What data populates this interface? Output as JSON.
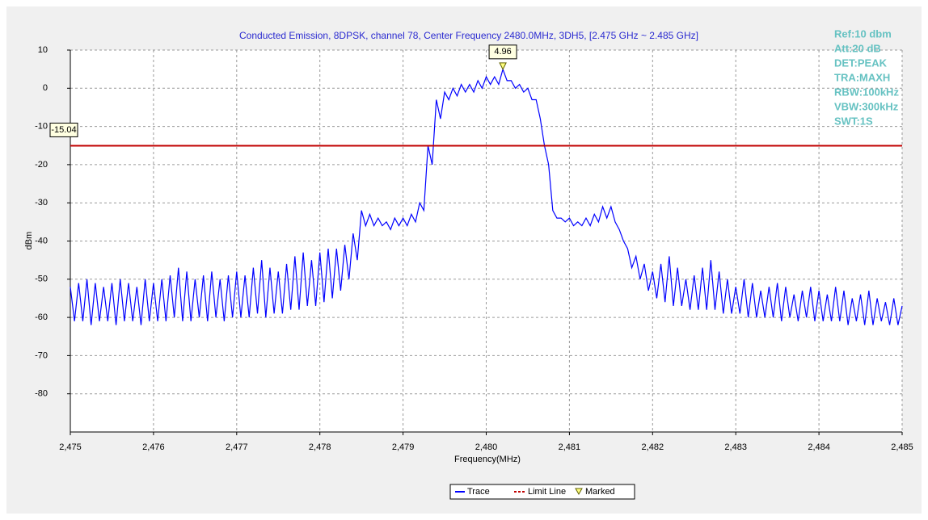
{
  "chart_data": {
    "type": "line",
    "title": "Conducted Emission, 8DPSK, channel 78, Center Frequency 2480.0MHz, 3DH5, [2.475 GHz ~ 2.485 GHz]",
    "xlabel": "Frequency(MHz)",
    "ylabel": "dBm",
    "xlim": [
      2475,
      2485
    ],
    "ylim": [
      -90,
      10
    ],
    "xticks": [
      {
        "value": 2475,
        "label": "2,475"
      },
      {
        "value": 2476,
        "label": "2,476"
      },
      {
        "value": 2477,
        "label": "2,477"
      },
      {
        "value": 2478,
        "label": "2,478"
      },
      {
        "value": 2479,
        "label": "2,479"
      },
      {
        "value": 2480,
        "label": "2,480"
      },
      {
        "value": 2481,
        "label": "2,481"
      },
      {
        "value": 2482,
        "label": "2,482"
      },
      {
        "value": 2483,
        "label": "2,483"
      },
      {
        "value": 2484,
        "label": "2,484"
      },
      {
        "value": 2485,
        "label": "2,485"
      }
    ],
    "yticks": [
      10,
      0,
      -10,
      -20,
      -30,
      -40,
      -50,
      -60,
      -70,
      -80
    ],
    "grid": true,
    "settings": [
      "Ref:10 dbm",
      "Att:20 dB",
      "DET:PEAK",
      "TRA:MAXH",
      "RBW:100kHz",
      "VBW:300kHz",
      "SWT:1S"
    ],
    "limit_line": {
      "name": "Limit Line",
      "value": -15.04,
      "color": "#c00000"
    },
    "marker": {
      "name": "Marked",
      "x": 2480.2,
      "value": 4.96
    },
    "x": [
      2475,
      2475.05,
      2475.1,
      2475.15,
      2475.2,
      2475.25,
      2475.3,
      2475.35,
      2475.4,
      2475.45,
      2475.5,
      2475.55,
      2475.6,
      2475.65,
      2475.7,
      2475.75,
      2475.8,
      2475.85,
      2475.9,
      2475.95,
      2476,
      2476.05,
      2476.1,
      2476.15,
      2476.2,
      2476.25,
      2476.3,
      2476.35,
      2476.4,
      2476.45,
      2476.5,
      2476.55,
      2476.6,
      2476.65,
      2476.7,
      2476.75,
      2476.8,
      2476.85,
      2476.9,
      2476.95,
      2477,
      2477.05,
      2477.1,
      2477.15,
      2477.2,
      2477.25,
      2477.3,
      2477.35,
      2477.4,
      2477.45,
      2477.5,
      2477.55,
      2477.6,
      2477.65,
      2477.7,
      2477.75,
      2477.8,
      2477.85,
      2477.9,
      2477.95,
      2478,
      2478.05,
      2478.1,
      2478.15,
      2478.2,
      2478.25,
      2478.3,
      2478.35,
      2478.4,
      2478.45,
      2478.5,
      2478.55,
      2478.6,
      2478.65,
      2478.7,
      2478.75,
      2478.8,
      2478.85,
      2478.9,
      2478.95,
      2479,
      2479.05,
      2479.1,
      2479.15,
      2479.2,
      2479.25,
      2479.3,
      2479.35,
      2479.4,
      2479.45,
      2479.5,
      2479.55,
      2479.6,
      2479.65,
      2479.7,
      2479.75,
      2479.8,
      2479.85,
      2479.9,
      2479.95,
      2480,
      2480.05,
      2480.1,
      2480.15,
      2480.2,
      2480.25,
      2480.3,
      2480.35,
      2480.4,
      2480.45,
      2480.5,
      2480.55,
      2480.6,
      2480.65,
      2480.7,
      2480.75,
      2480.8,
      2480.85,
      2480.9,
      2480.95,
      2481,
      2481.05,
      2481.1,
      2481.15,
      2481.2,
      2481.25,
      2481.3,
      2481.35,
      2481.4,
      2481.45,
      2481.5,
      2481.55,
      2481.6,
      2481.65,
      2481.7,
      2481.75,
      2481.8,
      2481.85,
      2481.9,
      2481.95,
      2482,
      2482.05,
      2482.1,
      2482.15,
      2482.2,
      2482.25,
      2482.3,
      2482.35,
      2482.4,
      2482.45,
      2482.5,
      2482.55,
      2482.6,
      2482.65,
      2482.7,
      2482.75,
      2482.8,
      2482.85,
      2482.9,
      2482.95,
      2483,
      2483.05,
      2483.1,
      2483.15,
      2483.2,
      2483.25,
      2483.3,
      2483.35,
      2483.4,
      2483.45,
      2483.5,
      2483.55,
      2483.6,
      2483.65,
      2483.7,
      2483.75,
      2483.8,
      2483.85,
      2483.9,
      2483.95,
      2484,
      2484.05,
      2484.1,
      2484.15,
      2484.2,
      2484.25,
      2484.3,
      2484.35,
      2484.4,
      2484.45,
      2484.5,
      2484.55,
      2484.6,
      2484.65,
      2484.7,
      2484.75,
      2484.8,
      2484.85,
      2484.9,
      2484.95,
      2485
    ],
    "series": [
      {
        "name": "Trace",
        "color": "#0000ff",
        "values": [
          -52,
          -61,
          -51,
          -61,
          -50,
          -62,
          -51,
          -61,
          -52,
          -61,
          -51,
          -62,
          -50,
          -61,
          -51,
          -61,
          -52,
          -62,
          -50,
          -61,
          -51,
          -61,
          -50,
          -61,
          -49,
          -60,
          -47,
          -61,
          -48,
          -61,
          -50,
          -60,
          -49,
          -61,
          -48,
          -60,
          -50,
          -61,
          -49,
          -60,
          -48,
          -60,
          -49,
          -60,
          -47,
          -59,
          -45,
          -60,
          -47,
          -59,
          -48,
          -59,
          -46,
          -58,
          -44,
          -58,
          -43,
          -57,
          -45,
          -57,
          -43,
          -56,
          -42,
          -55,
          -42,
          -53,
          -41,
          -50,
          -38,
          -45,
          -32,
          -36,
          -33,
          -36,
          -34,
          -36,
          -35,
          -37,
          -34,
          -36,
          -34,
          -36,
          -33,
          -35,
          -30,
          -32,
          -15,
          -20,
          -3,
          -8,
          -1,
          -3,
          0,
          -2,
          1,
          -1,
          1,
          -1,
          2,
          0,
          3,
          1,
          3,
          1,
          4.96,
          2,
          2,
          0,
          1,
          -1,
          0,
          -3,
          -3,
          -8,
          -15,
          -20,
          -32,
          -34,
          -34,
          -35,
          -34,
          -36,
          -35,
          -36,
          -34,
          -36,
          -33,
          -35,
          -31,
          -34,
          -31,
          -35,
          -37,
          -40,
          -42,
          -47,
          -44,
          -50,
          -46,
          -53,
          -48,
          -55,
          -46,
          -56,
          -44,
          -57,
          -47,
          -57,
          -50,
          -58,
          -49,
          -58,
          -47,
          -58,
          -45,
          -58,
          -48,
          -59,
          -50,
          -59,
          -52,
          -59,
          -50,
          -60,
          -51,
          -60,
          -53,
          -60,
          -52,
          -60,
          -51,
          -61,
          -52,
          -60,
          -54,
          -61,
          -53,
          -60,
          -52,
          -61,
          -53,
          -61,
          -54,
          -61,
          -52,
          -61,
          -53,
          -62,
          -55,
          -61,
          -54,
          -62,
          -53,
          -62,
          -55,
          -61,
          -56,
          -62,
          -55,
          -62,
          -57
        ]
      }
    ]
  }
}
